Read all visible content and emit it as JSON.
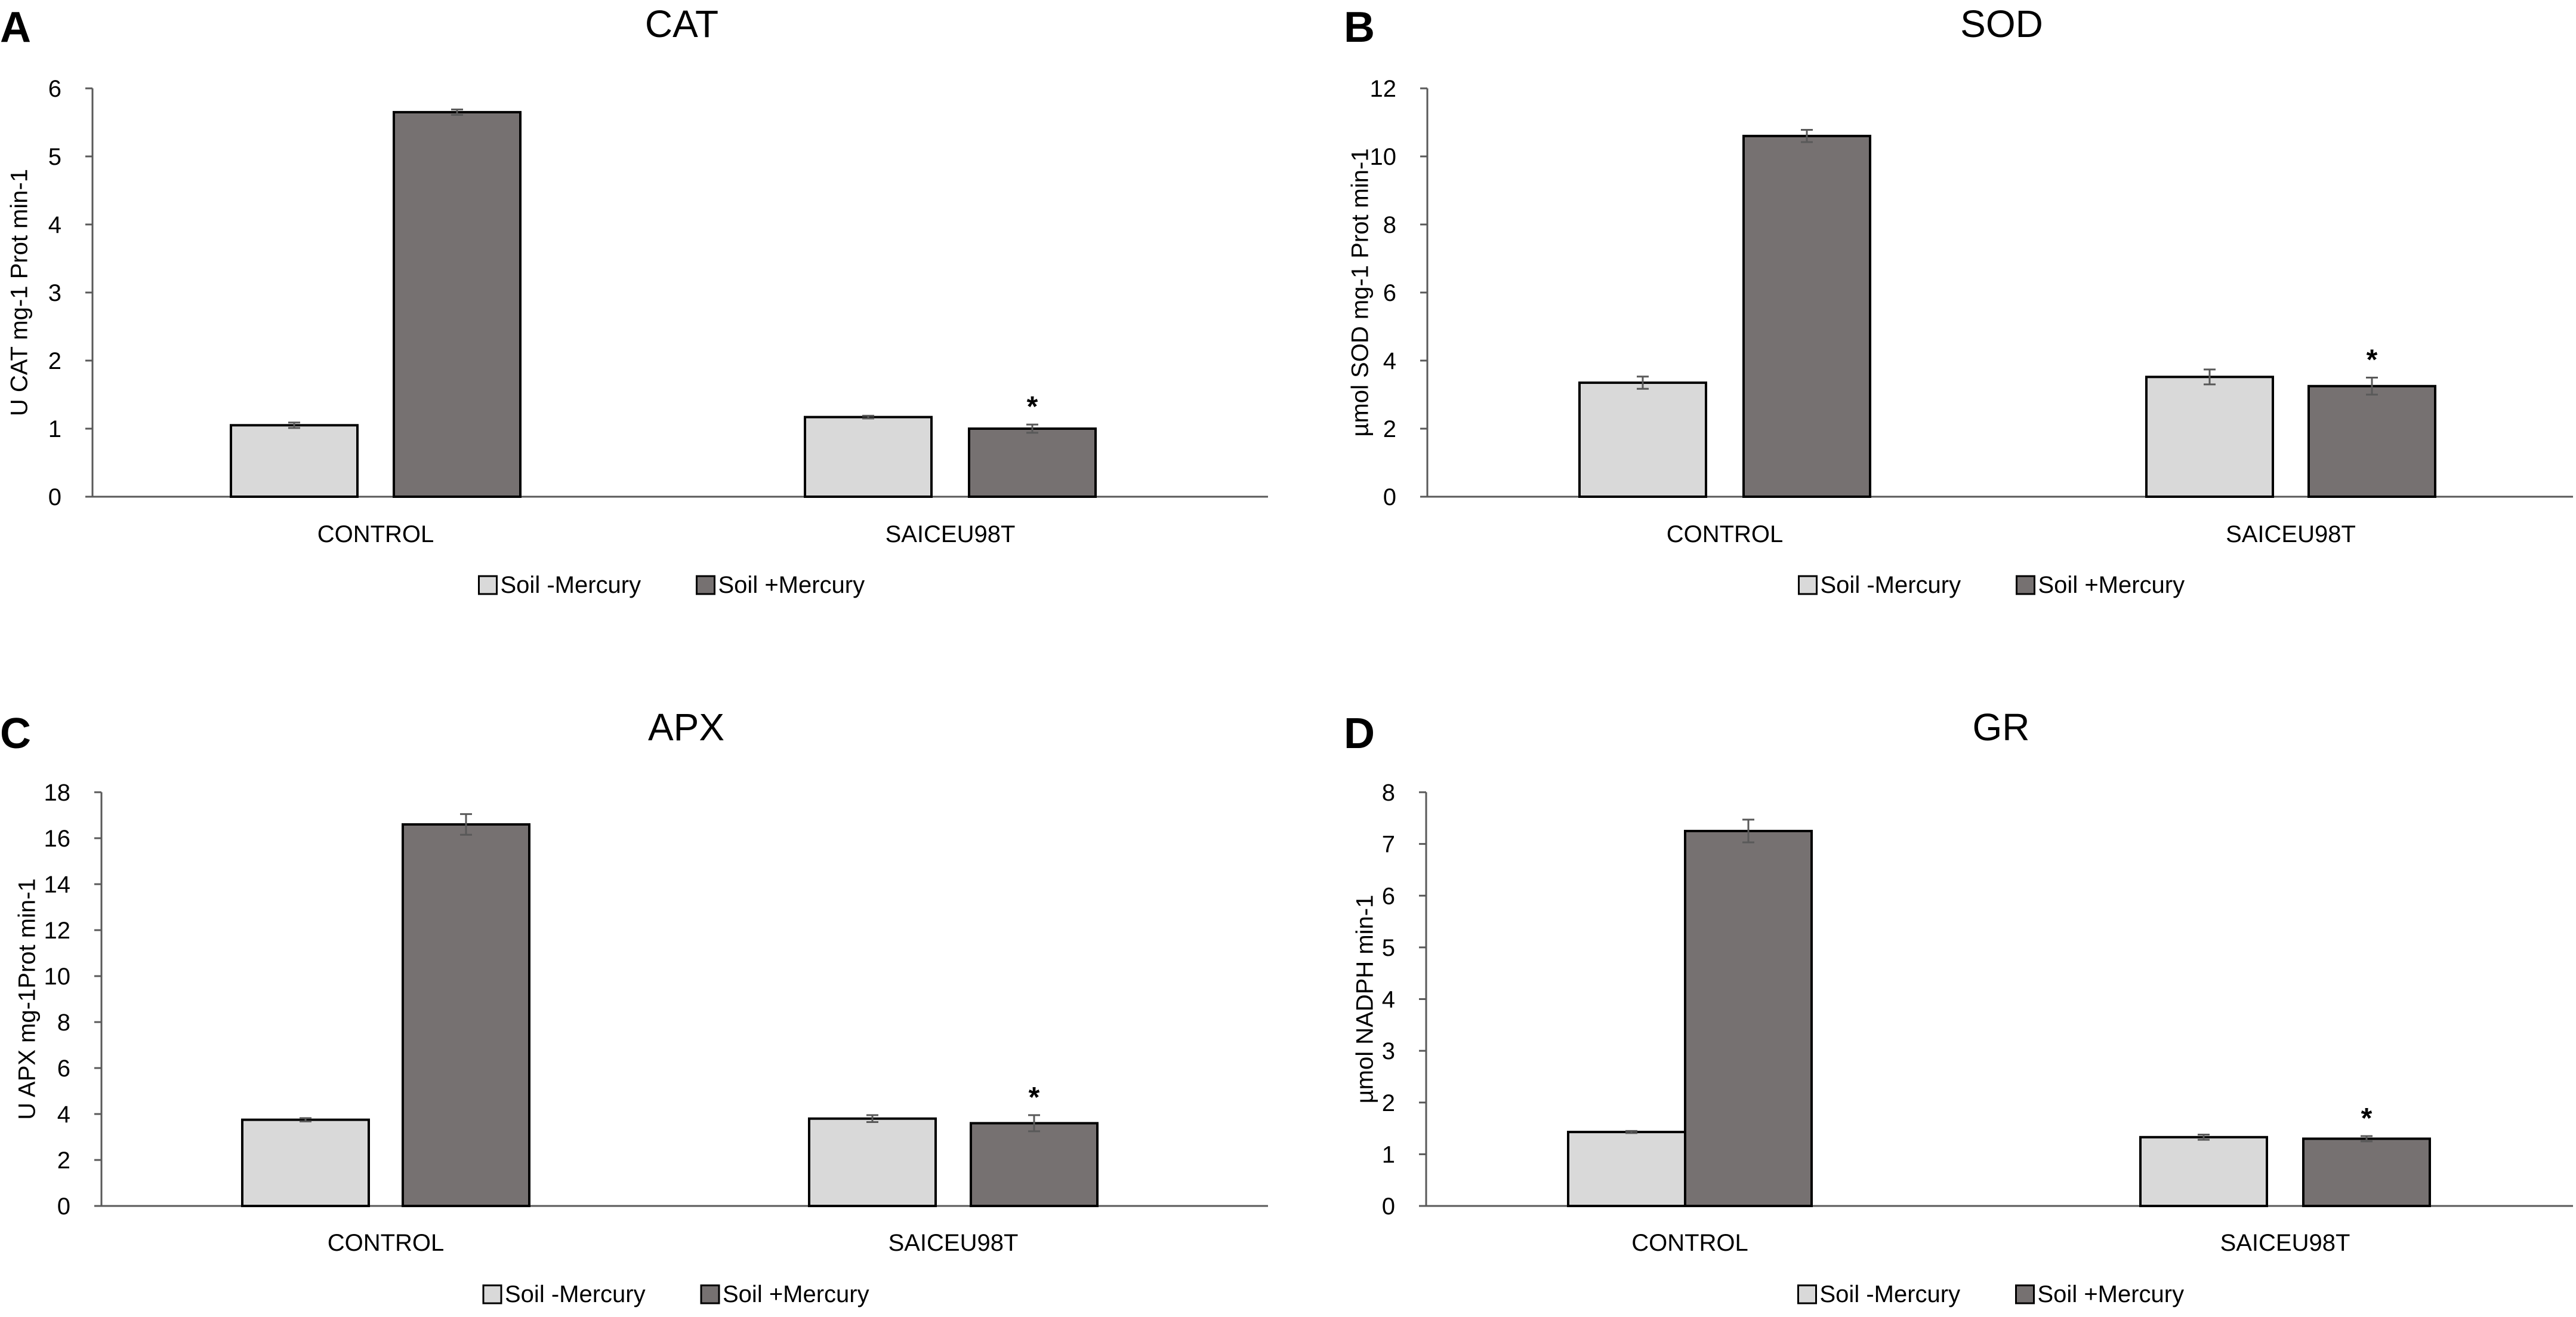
{
  "colors": {
    "soil_minus": "#d9d9d9",
    "soil_plus": "#767171",
    "edge": "#000000",
    "error": "#595959"
  },
  "legend": {
    "soil_minus": "Soil -Mercury",
    "soil_plus": "Soil +Mercury"
  },
  "chart_data": [
    {
      "panel": "A",
      "type": "bar",
      "title": "CAT",
      "ylabel": "U CAT mg-1 Prot min-1",
      "categories": [
        "CONTROL",
        "SAICEU98T"
      ],
      "ylim": [
        0,
        6
      ],
      "yticks": [
        0,
        1,
        2,
        3,
        4,
        5,
        6
      ],
      "series": [
        {
          "name": "Soil -Mercury",
          "values": [
            1.05,
            1.17
          ],
          "errors": [
            0.04,
            0.02
          ]
        },
        {
          "name": "Soil +Mercury",
          "values": [
            5.65,
            1.0
          ],
          "errors": [
            0.04,
            0.06
          ]
        }
      ],
      "annotations": [
        {
          "category": "SAICEU98T",
          "series": "Soil +Mercury",
          "text": "*"
        }
      ]
    },
    {
      "panel": "B",
      "type": "bar",
      "title": "SOD",
      "ylabel": "µmol SOD mg-1 Prot min-1",
      "categories": [
        "CONTROL",
        "SAICEU98T"
      ],
      "ylim": [
        0,
        12
      ],
      "yticks": [
        0,
        2,
        4,
        6,
        8,
        10,
        12
      ],
      "series": [
        {
          "name": "Soil -Mercury",
          "values": [
            3.35,
            3.52
          ],
          "errors": [
            0.18,
            0.22
          ]
        },
        {
          "name": "Soil +Mercury",
          "values": [
            10.6,
            3.25
          ],
          "errors": [
            0.18,
            0.25
          ]
        }
      ],
      "annotations": [
        {
          "category": "SAICEU98T",
          "series": "Soil +Mercury",
          "text": "*"
        }
      ]
    },
    {
      "panel": "C",
      "type": "bar",
      "title": "APX",
      "ylabel": "U APX mg-1Prot min-1",
      "categories": [
        "CONTROL",
        "SAICEU98T"
      ],
      "ylim": [
        0,
        18
      ],
      "yticks": [
        0,
        2,
        4,
        6,
        8,
        10,
        12,
        14,
        16,
        18
      ],
      "series": [
        {
          "name": "Soil -Mercury",
          "values": [
            3.75,
            3.8
          ],
          "errors": [
            0.07,
            0.15
          ]
        },
        {
          "name": "Soil +Mercury",
          "values": [
            16.6,
            3.6
          ],
          "errors": [
            0.45,
            0.35
          ]
        }
      ],
      "annotations": [
        {
          "category": "SAICEU98T",
          "series": "Soil +Mercury",
          "text": "*"
        }
      ]
    },
    {
      "panel": "D",
      "type": "bar",
      "title": "GR",
      "ylabel": "µmol NADPH min-1",
      "categories": [
        "CONTROL",
        "SAICEU98T"
      ],
      "ylim": [
        0,
        8
      ],
      "yticks": [
        0,
        1,
        2,
        3,
        4,
        5,
        6,
        7,
        8
      ],
      "series": [
        {
          "name": "Soil -Mercury",
          "values": [
            1.43,
            1.33
          ],
          "errors": [
            0.02,
            0.05
          ]
        },
        {
          "name": "Soil +Mercury",
          "values": [
            7.25,
            1.3
          ],
          "errors": [
            0.22,
            0.05
          ]
        }
      ],
      "annotations": [
        {
          "category": "SAICEU98T",
          "series": "Soil +Mercury",
          "text": "*"
        }
      ]
    }
  ]
}
